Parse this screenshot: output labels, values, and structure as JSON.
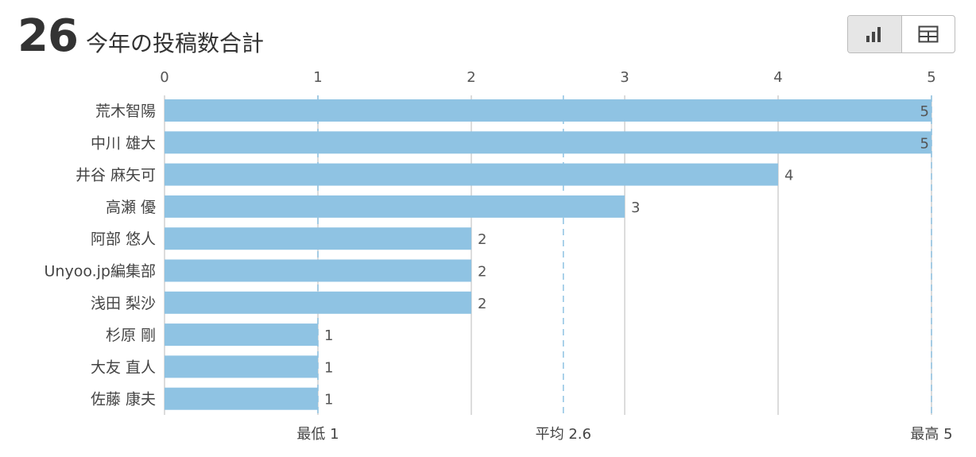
{
  "header": {
    "total": "26",
    "title": "今年の投稿数合計"
  },
  "toolbar": {
    "chart_view_icon": "bar-chart-icon",
    "table_view_icon": "table-icon"
  },
  "colors": {
    "bar": "#8fc3e3",
    "grid": "#d0d0d0",
    "reference_line": "#8fc3e3",
    "text": "#333333"
  },
  "chart_data": {
    "type": "bar",
    "orientation": "horizontal",
    "categories": [
      "荒木智陽",
      "中川 雄大",
      "井谷 麻矢可",
      "高瀬 優",
      "阿部 悠人",
      "Unyoo.jp編集部",
      "浅田 梨沙",
      "杉原 剛",
      "大友 直人",
      "佐藤 康夫"
    ],
    "values": [
      5,
      5,
      4,
      3,
      2,
      2,
      2,
      1,
      1,
      1
    ],
    "xlim": [
      0,
      5
    ],
    "xticks": [
      0,
      1,
      2,
      3,
      4,
      5
    ],
    "grid": true,
    "reference_lines": [
      {
        "label": "最低 1",
        "value": 1
      },
      {
        "label": "平均 2.6",
        "value": 2.6
      },
      {
        "label": "最高 5",
        "value": 5
      }
    ]
  }
}
